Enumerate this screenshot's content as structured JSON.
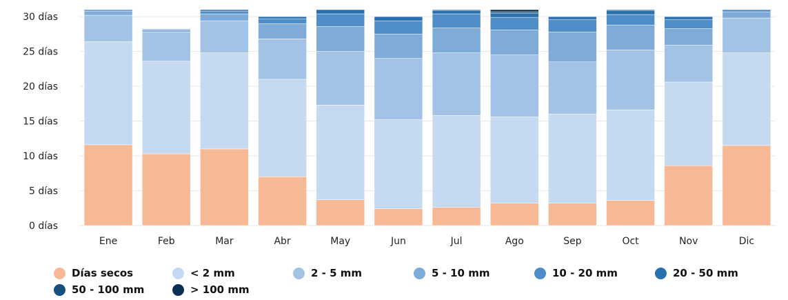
{
  "chart_data": {
    "type": "bar",
    "stacked": true,
    "categories": [
      "Ene",
      "Feb",
      "Mar",
      "Abr",
      "May",
      "Jun",
      "Jul",
      "Ago",
      "Sep",
      "Oct",
      "Nov",
      "Dic"
    ],
    "y_ticks": [
      "0 días",
      "5 días",
      "10 días",
      "15 días",
      "20 días",
      "25 días",
      "30 días"
    ],
    "ylim": [
      0,
      31
    ],
    "series": [
      {
        "name": "Días secos",
        "color": "#f7b995",
        "values": [
          11.6,
          10.3,
          11.0,
          7.0,
          3.7,
          2.4,
          2.6,
          3.2,
          3.2,
          3.6,
          8.6,
          11.5
        ]
      },
      {
        "name": "< 2 mm",
        "color": "#c5d9f1",
        "values": [
          14.8,
          13.3,
          13.8,
          14.0,
          13.6,
          12.8,
          13.2,
          12.4,
          12.8,
          13.0,
          12.0,
          13.3
        ]
      },
      {
        "name": "2 - 5 mm",
        "color": "#a3c3e6",
        "values": [
          3.8,
          4.2,
          4.6,
          5.8,
          7.7,
          8.8,
          9.0,
          8.9,
          7.5,
          8.6,
          5.3,
          5.0
        ]
      },
      {
        "name": "5 - 10 mm",
        "color": "#7fabd9",
        "values": [
          0.6,
          0.3,
          1.0,
          2.2,
          3.6,
          3.5,
          3.6,
          3.6,
          4.3,
          3.6,
          2.4,
          0.9
        ]
      },
      {
        "name": "10 - 20 mm",
        "color": "#4f8dc8",
        "values": [
          0.2,
          0.1,
          0.4,
          0.7,
          1.8,
          1.9,
          2.0,
          1.8,
          1.8,
          1.5,
          1.3,
          0.3
        ]
      },
      {
        "name": "20 - 50 mm",
        "color": "#2a6fae",
        "values": [
          0.0,
          0.0,
          0.2,
          0.3,
          0.6,
          0.6,
          0.5,
          0.6,
          0.4,
          0.6,
          0.4,
          0.0
        ]
      },
      {
        "name": "50 - 100 mm",
        "color": "#15507f",
        "values": [
          0.0,
          0.0,
          0.0,
          0.0,
          0.0,
          0.0,
          0.1,
          0.2,
          0.0,
          0.1,
          0.0,
          0.0
        ]
      },
      {
        "name": "> 100 mm",
        "color": "#0b2f52",
        "values": [
          0.0,
          0.0,
          0.0,
          0.0,
          0.0,
          0.0,
          0.0,
          0.3,
          0.0,
          0.0,
          0.0,
          0.0
        ]
      }
    ],
    "grid": true,
    "legend": "bottom"
  }
}
